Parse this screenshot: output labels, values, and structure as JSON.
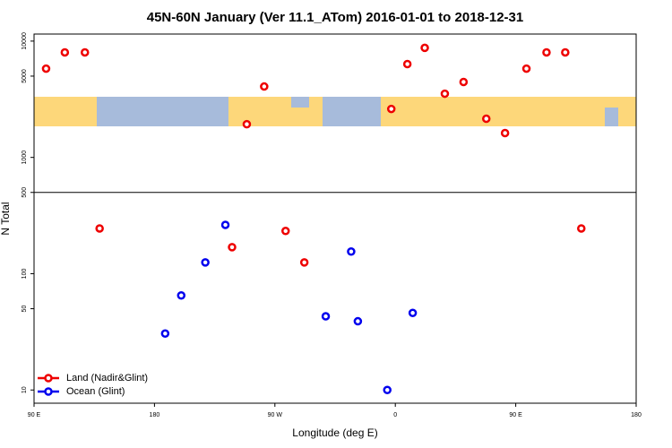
{
  "chart_data": {
    "type": "scatter",
    "title": "45N-60N January (Ver 11.1_ATom)   2016-01-01 to 2018-12-31",
    "x_label": "Longitude (deg E)",
    "y_label": "N Total",
    "log_y": true,
    "xlim": [
      90,
      540
    ],
    "ylim": [
      7.7,
      11500
    ],
    "xticks": [
      {
        "value": 90,
        "label": "90 E"
      },
      {
        "value": 180,
        "label": "180"
      },
      {
        "value": 270,
        "label": "90 W"
      },
      {
        "value": 360,
        "label": "0"
      },
      {
        "value": 450,
        "label": "90 E"
      },
      {
        "value": 540,
        "label": "180"
      }
    ],
    "yticks": [
      10,
      50,
      100,
      500,
      1000,
      5000,
      10000
    ],
    "hline": 500,
    "legend_position": "lower left",
    "series": [
      {
        "name": "Land (Nadir&Glint)",
        "color": "#ee0000",
        "x": [
          99,
          113,
          128,
          139,
          249,
          262,
          238,
          278,
          292,
          357,
          369,
          382,
          397,
          411,
          428,
          442,
          458,
          473,
          487,
          499
        ],
        "values": [
          5800,
          8000,
          8000,
          245,
          1930,
          4070,
          169,
          233,
          125,
          2610,
          6350,
          8750,
          3530,
          4450,
          2150,
          1620,
          5800,
          8000,
          8000,
          245
        ]
      },
      {
        "name": "Ocean (Glint)",
        "color": "#0000ee",
        "x": [
          188,
          200,
          218,
          233,
          308,
          327,
          332,
          354,
          373
        ],
        "values": [
          30.6,
          65,
          125,
          263,
          43,
          155,
          39,
          10,
          46
        ]
      }
    ]
  }
}
